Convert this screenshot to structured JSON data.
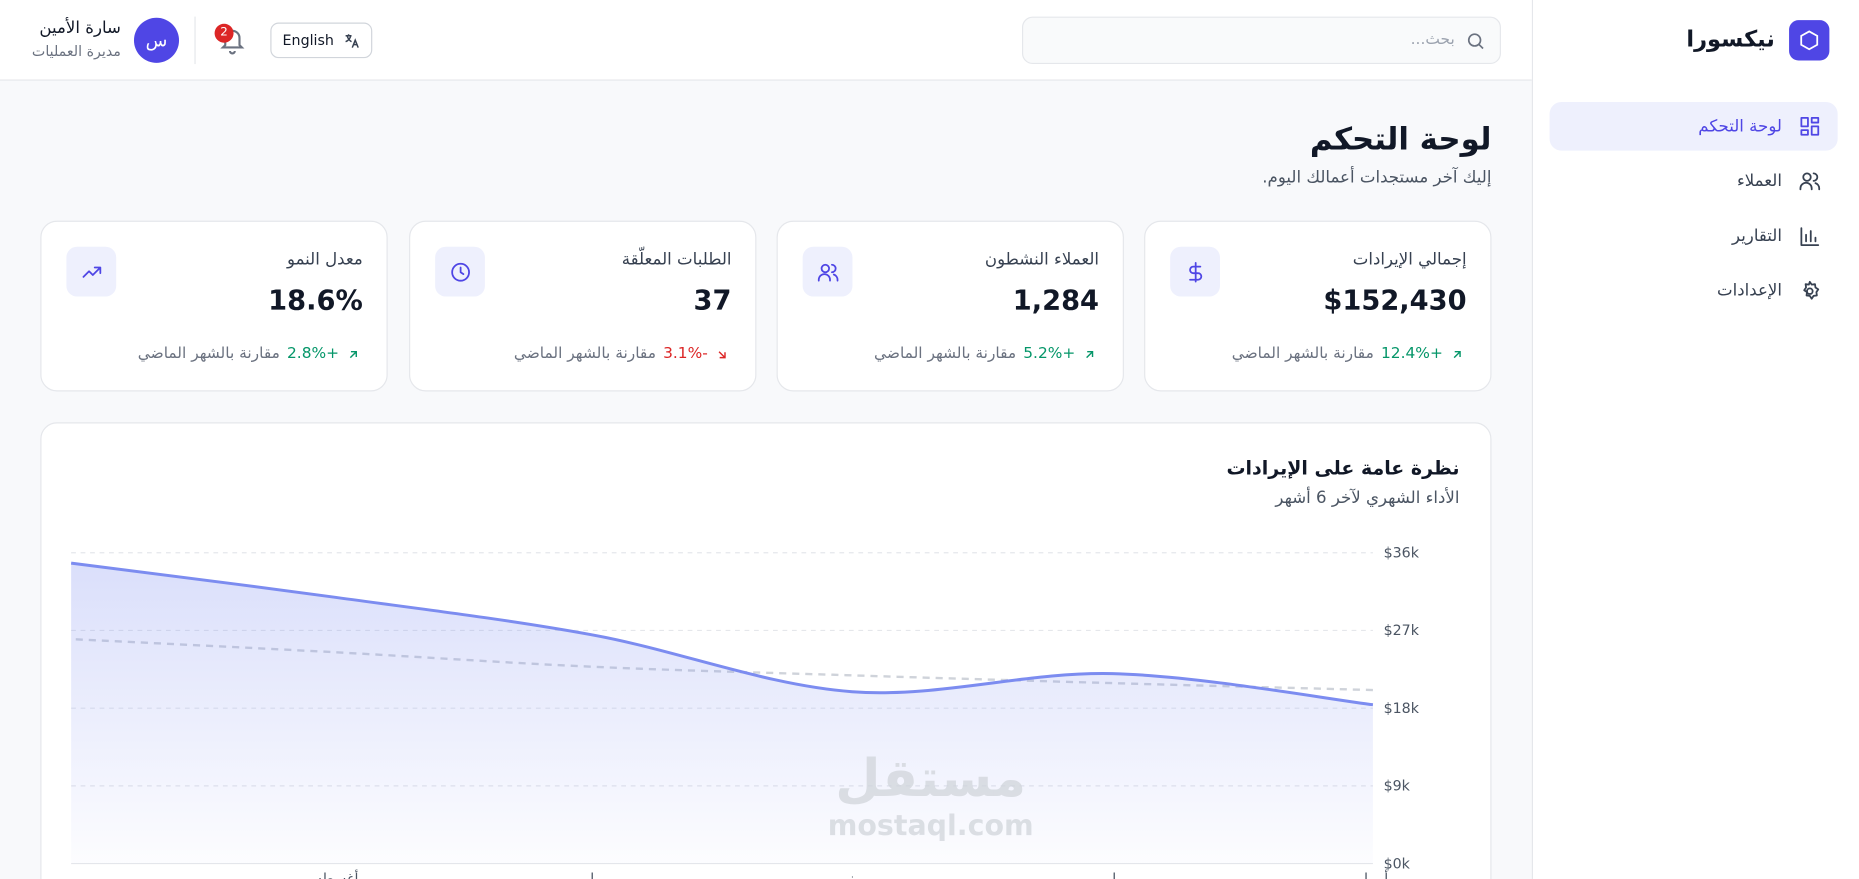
{
  "sidebar": {
    "brand": "نيكسورا",
    "nav": [
      "لوحة التحكم",
      "العملاء",
      "التقارير",
      "الإعدادات"
    ]
  },
  "header": {
    "search_placeholder": "بحث...",
    "language": "English",
    "notifications": 2,
    "user": {
      "initial": "س",
      "name": "سارة الأمين",
      "role": "مديرة العمليات"
    }
  },
  "page": {
    "title": "لوحة التحكم",
    "subtitle": "إليك آخر مستجدات أعمالك اليوم."
  },
  "cards": [
    {
      "title": "إجمالي الإيرادات",
      "value": "$152,430",
      "change": "+12.4%",
      "note": "مقارنة بالشهر الماضي"
    },
    {
      "title": "العملاء النشطون",
      "value": "1,284",
      "change": "+5.2%",
      "note": "مقارنة بالشهر الماضي"
    },
    {
      "title": "الطلبات المعلّقة",
      "value": "37",
      "change": "-3.1%",
      "note": "مقارنة بالشهر الماضي"
    },
    {
      "title": "معدل النمو",
      "value": "18.6%",
      "change": "+2.8%",
      "note": "مقارنة بالشهر الماضي"
    }
  ],
  "chart_data": {
    "type": "area",
    "title": "نظرة عامة على الإيرادات",
    "subtitle": "الأداء الشهري لآخر 6 أشهر",
    "categories": [
      "أبريل",
      "مايو",
      "يونيو",
      "يوليو",
      "أغسطس",
      null
    ],
    "series": [
      {
        "color": "#7c8cf0",
        "values": [
          18.4,
          22.0,
          19.9,
          26.5,
          30.9,
          34.8
        ]
      },
      {
        "color": "#cfd3da",
        "dashed": true,
        "values": [
          20.1,
          20.9,
          21.8,
          22.8,
          24.5,
          26.0
        ]
      }
    ],
    "ylim": [
      0,
      36
    ],
    "yticks": [
      {
        "value": 0,
        "label": "$0k"
      },
      {
        "value": 9,
        "label": "$9k"
      },
      {
        "value": 18,
        "label": "$18k"
      },
      {
        "value": 27,
        "label": "$27k"
      },
      {
        "value": 36,
        "label": "$36k"
      }
    ],
    "grid": true
  },
  "watermark": [
    "مستقل",
    "mostaql.com"
  ]
}
